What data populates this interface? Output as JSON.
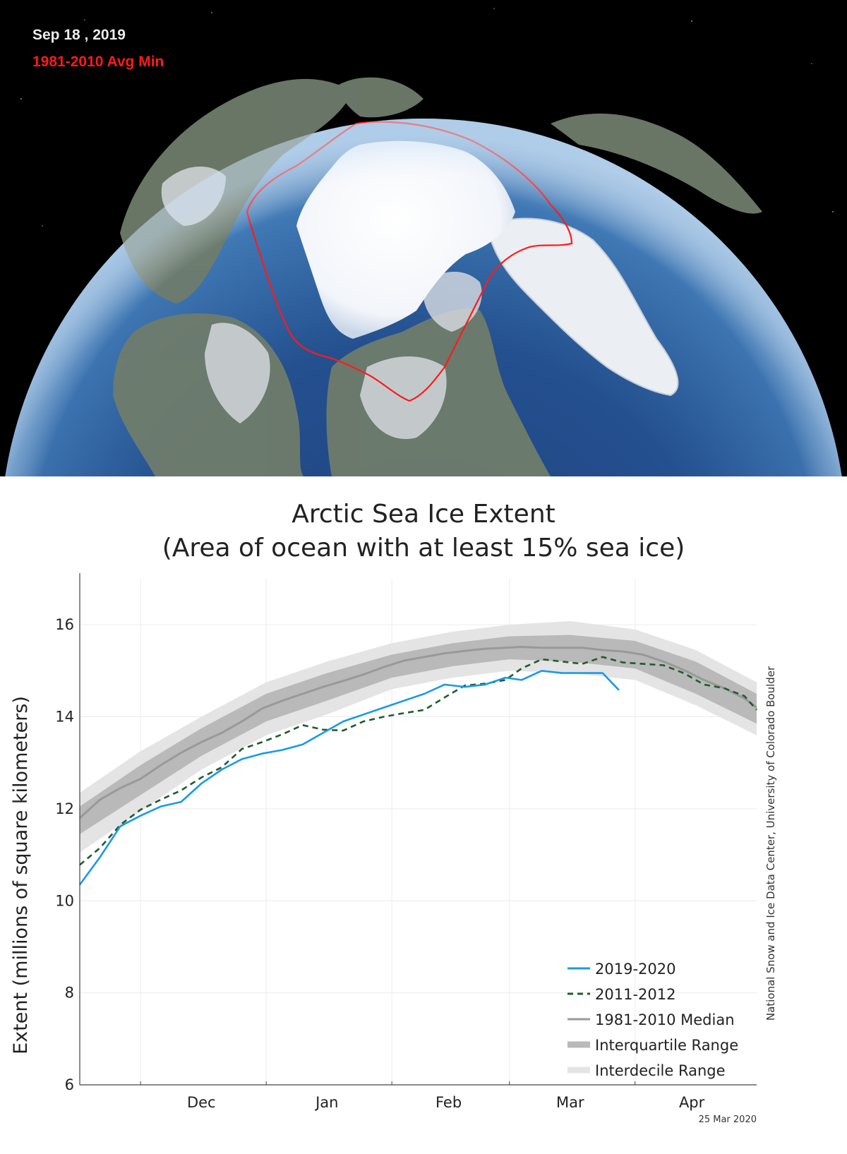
{
  "map": {
    "date_label": "Sep 18 , 2019",
    "avg_min_label": "1981-2010 Avg Min",
    "avg_min_color": "#ff1a1a"
  },
  "credit": {
    "source": "National Snow and Ice Data Center, University of Colorado Boulder",
    "date": "25 Mar 2020"
  },
  "chart_data": {
    "type": "line",
    "title": "Arctic Sea Ice Extent",
    "subtitle": "(Area of ocean with at least 15% sea ice)",
    "xlabel": "",
    "ylabel": "Extent (millions of square kilometers)",
    "ylim": [
      6,
      17
    ],
    "yticks": [
      6,
      8,
      10,
      12,
      14,
      16
    ],
    "x_range": [
      "2019-11-16",
      "2020-05-01"
    ],
    "xticks": [
      {
        "label": "Dec",
        "date": "2019-12-16"
      },
      {
        "label": "Jan",
        "date": "2020-01-16"
      },
      {
        "label": "Feb",
        "date": "2020-02-15"
      },
      {
        "label": "Mar",
        "date": "2020-03-16"
      },
      {
        "label": "Apr",
        "date": "2020-04-15"
      }
    ],
    "month_boundaries": [
      "2019-12-01",
      "2020-01-01",
      "2020-02-01",
      "2020-03-01",
      "2020-04-01"
    ],
    "grid": true,
    "legend_position": "bottom-right",
    "series": [
      {
        "name": "2019-2020",
        "style": "solid",
        "color": "#1a9ae6",
        "points": [
          [
            "2019-11-16",
            10.35
          ],
          [
            "2019-11-21",
            10.95
          ],
          [
            "2019-11-26",
            11.62
          ],
          [
            "2019-12-01",
            11.85
          ],
          [
            "2019-12-06",
            12.05
          ],
          [
            "2019-12-11",
            12.15
          ],
          [
            "2019-12-16",
            12.55
          ],
          [
            "2019-12-21",
            12.85
          ],
          [
            "2019-12-26",
            13.08
          ],
          [
            "2019-12-31",
            13.2
          ],
          [
            "2020-01-05",
            13.28
          ],
          [
            "2020-01-10",
            13.4
          ],
          [
            "2020-01-15",
            13.65
          ],
          [
            "2020-01-20",
            13.9
          ],
          [
            "2020-01-25",
            14.05
          ],
          [
            "2020-01-30",
            14.2
          ],
          [
            "2020-02-04",
            14.35
          ],
          [
            "2020-02-09",
            14.5
          ],
          [
            "2020-02-14",
            14.7
          ],
          [
            "2020-02-19",
            14.65
          ],
          [
            "2020-02-24",
            14.7
          ],
          [
            "2020-02-29",
            14.85
          ],
          [
            "2020-03-04",
            14.8
          ],
          [
            "2020-03-09",
            15.0
          ],
          [
            "2020-03-14",
            14.95
          ],
          [
            "2020-03-19",
            14.95
          ],
          [
            "2020-03-24",
            14.95
          ],
          [
            "2020-03-28",
            14.58
          ]
        ]
      },
      {
        "name": "2011-2012",
        "style": "dashed",
        "color": "#1f5c2e",
        "points": [
          [
            "2019-11-16",
            10.78
          ],
          [
            "2019-11-21",
            11.15
          ],
          [
            "2019-11-26",
            11.65
          ],
          [
            "2019-12-01",
            11.98
          ],
          [
            "2019-12-06",
            12.2
          ],
          [
            "2019-12-11",
            12.4
          ],
          [
            "2019-12-16",
            12.68
          ],
          [
            "2019-12-21",
            12.9
          ],
          [
            "2019-12-26",
            13.3
          ],
          [
            "2019-12-31",
            13.45
          ],
          [
            "2020-01-05",
            13.62
          ],
          [
            "2020-01-10",
            13.82
          ],
          [
            "2020-01-15",
            13.72
          ],
          [
            "2020-01-20",
            13.7
          ],
          [
            "2020-01-25",
            13.9
          ],
          [
            "2020-01-30",
            14.0
          ],
          [
            "2020-02-04",
            14.08
          ],
          [
            "2020-02-09",
            14.15
          ],
          [
            "2020-02-14",
            14.42
          ],
          [
            "2020-02-19",
            14.68
          ],
          [
            "2020-02-24",
            14.72
          ],
          [
            "2020-02-29",
            14.8
          ],
          [
            "2020-03-04",
            15.05
          ],
          [
            "2020-03-09",
            15.25
          ],
          [
            "2020-03-14",
            15.2
          ],
          [
            "2020-03-19",
            15.15
          ],
          [
            "2020-03-24",
            15.3
          ],
          [
            "2020-03-29",
            15.18
          ],
          [
            "2020-04-03",
            15.15
          ],
          [
            "2020-04-08",
            15.12
          ],
          [
            "2020-04-13",
            14.95
          ],
          [
            "2020-04-18",
            14.7
          ],
          [
            "2020-04-23",
            14.62
          ],
          [
            "2020-04-28",
            14.45
          ],
          [
            "2020-05-01",
            14.15
          ]
        ]
      },
      {
        "name": "1981-2010 Median",
        "style": "solid",
        "color": "#999999",
        "points": [
          [
            "2019-11-16",
            11.8
          ],
          [
            "2019-11-21",
            12.2
          ],
          [
            "2019-11-26",
            12.45
          ],
          [
            "2019-12-01",
            12.65
          ],
          [
            "2019-12-06",
            12.95
          ],
          [
            "2019-12-11",
            13.22
          ],
          [
            "2019-12-16",
            13.45
          ],
          [
            "2019-12-21",
            13.65
          ],
          [
            "2019-12-26",
            13.9
          ],
          [
            "2019-12-31",
            14.18
          ],
          [
            "2020-01-05",
            14.35
          ],
          [
            "2020-01-10",
            14.5
          ],
          [
            "2020-01-15",
            14.65
          ],
          [
            "2020-01-20",
            14.78
          ],
          [
            "2020-01-25",
            14.92
          ],
          [
            "2020-01-30",
            15.08
          ],
          [
            "2020-02-04",
            15.22
          ],
          [
            "2020-02-09",
            15.3
          ],
          [
            "2020-02-14",
            15.38
          ],
          [
            "2020-02-19",
            15.43
          ],
          [
            "2020-02-24",
            15.48
          ],
          [
            "2020-02-29",
            15.5
          ],
          [
            "2020-03-04",
            15.52
          ],
          [
            "2020-03-09",
            15.5
          ],
          [
            "2020-03-14",
            15.5
          ],
          [
            "2020-03-19",
            15.5
          ],
          [
            "2020-03-24",
            15.45
          ],
          [
            "2020-03-29",
            15.42
          ],
          [
            "2020-04-03",
            15.35
          ],
          [
            "2020-04-08",
            15.2
          ],
          [
            "2020-04-13",
            15.02
          ],
          [
            "2020-04-18",
            14.8
          ],
          [
            "2020-04-23",
            14.62
          ],
          [
            "2020-04-28",
            14.4
          ],
          [
            "2020-05-01",
            14.2
          ]
        ]
      }
    ],
    "bands": [
      {
        "name": "Interquartile Range",
        "color": "#b9b9b9",
        "points": [
          [
            "2019-11-16",
            11.45,
            12.05
          ],
          [
            "2019-12-01",
            12.3,
            12.95
          ],
          [
            "2019-12-16",
            13.15,
            13.75
          ],
          [
            "2020-01-01",
            13.9,
            14.5
          ],
          [
            "2020-01-16",
            14.35,
            14.95
          ],
          [
            "2020-02-01",
            14.85,
            15.35
          ],
          [
            "2020-02-16",
            15.1,
            15.6
          ],
          [
            "2020-03-01",
            15.25,
            15.75
          ],
          [
            "2020-03-16",
            15.2,
            15.78
          ],
          [
            "2020-04-01",
            15.05,
            15.65
          ],
          [
            "2020-04-16",
            14.5,
            15.2
          ],
          [
            "2020-05-01",
            13.85,
            14.5
          ]
        ]
      },
      {
        "name": "Interdecile Range",
        "color": "#e4e4e4",
        "points": [
          [
            "2019-11-16",
            11.05,
            12.35
          ],
          [
            "2019-12-01",
            11.95,
            13.25
          ],
          [
            "2019-12-16",
            12.85,
            14.0
          ],
          [
            "2020-01-01",
            13.6,
            14.75
          ],
          [
            "2020-01-16",
            14.05,
            15.2
          ],
          [
            "2020-02-01",
            14.6,
            15.6
          ],
          [
            "2020-02-16",
            14.85,
            15.85
          ],
          [
            "2020-03-01",
            15.0,
            16.0
          ],
          [
            "2020-03-16",
            14.95,
            16.08
          ],
          [
            "2020-04-01",
            14.8,
            15.9
          ],
          [
            "2020-04-16",
            14.25,
            15.45
          ],
          [
            "2020-05-01",
            13.6,
            14.75
          ]
        ]
      }
    ]
  }
}
